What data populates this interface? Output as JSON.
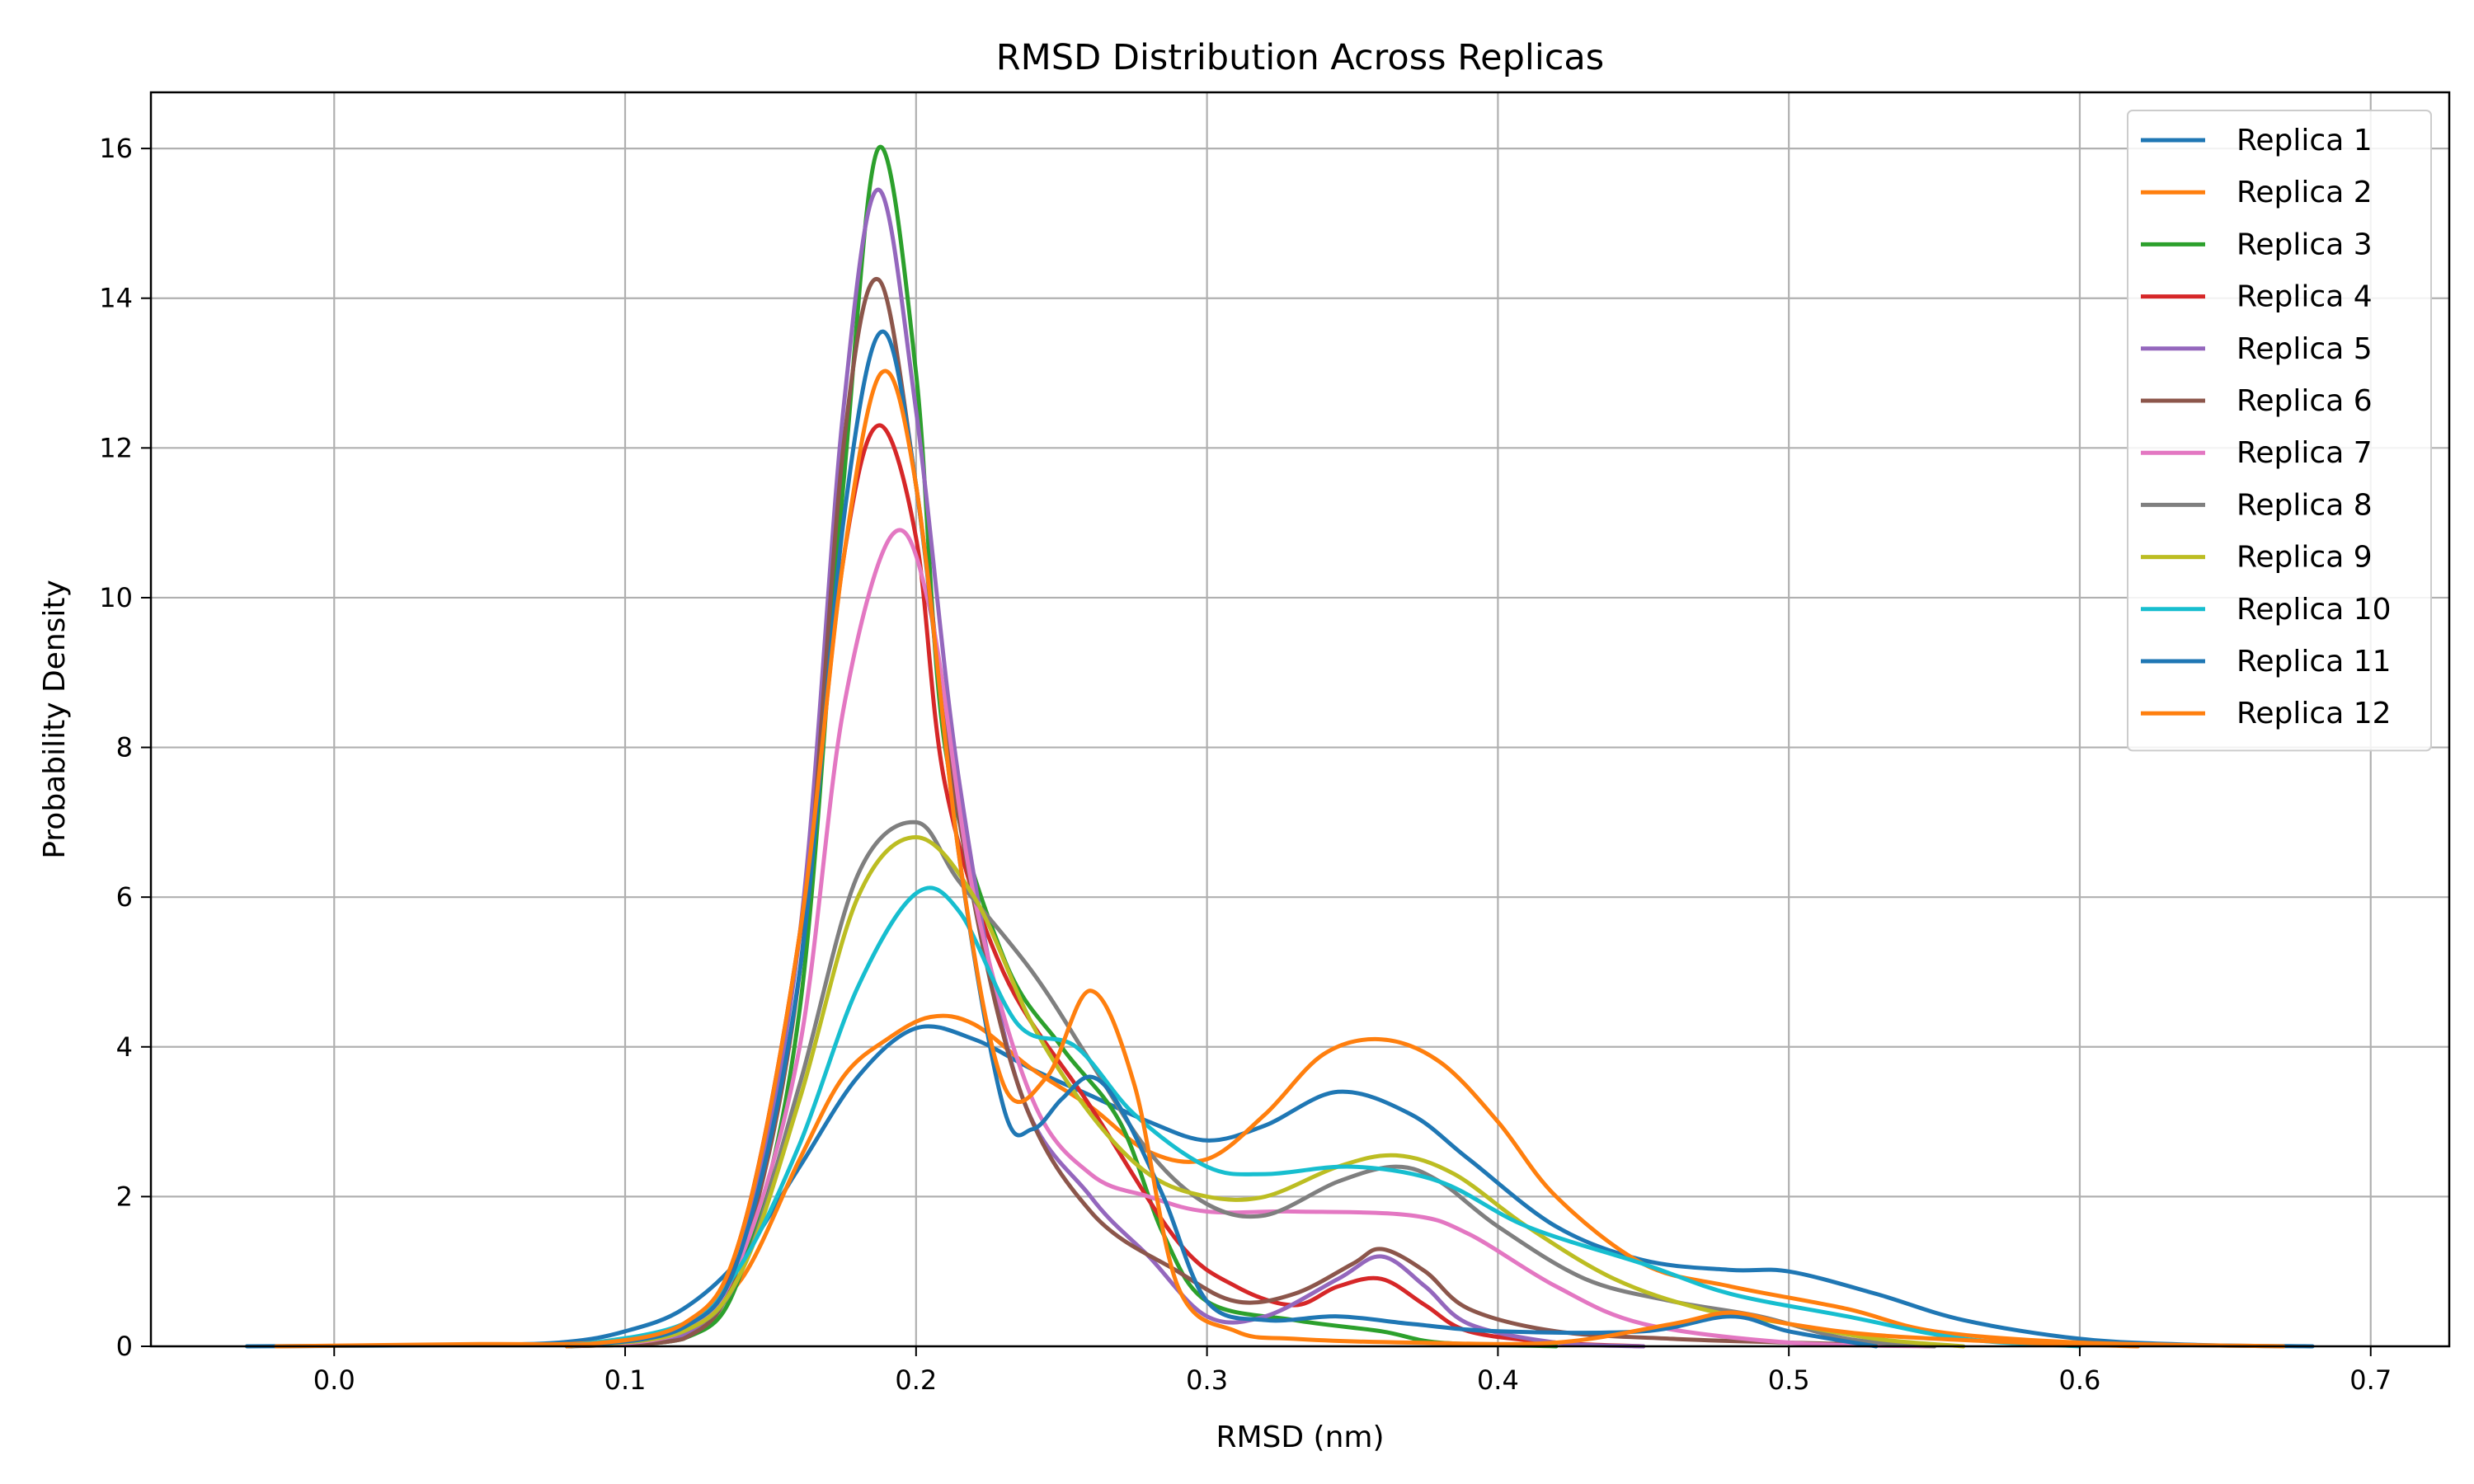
{
  "chart_data": {
    "type": "line",
    "title": "RMSD Distribution Across Replicas",
    "xlabel": "RMSD (nm)",
    "ylabel": "Probability Density",
    "xlim": [
      -0.063,
      0.727
    ],
    "ylim": [
      0,
      16.75
    ],
    "x_ticks": [
      0.0,
      0.1,
      0.2,
      0.3,
      0.4,
      0.5,
      0.6,
      0.7
    ],
    "x_tick_labels": [
      "0.0",
      "0.1",
      "0.2",
      "0.3",
      "0.4",
      "0.5",
      "0.6",
      "0.7"
    ],
    "y_ticks": [
      0,
      2,
      4,
      6,
      8,
      10,
      12,
      14,
      16
    ],
    "y_tick_labels": [
      "0",
      "2",
      "4",
      "6",
      "8",
      "10",
      "12",
      "14",
      "16"
    ],
    "grid": true,
    "legend_position": "top-right",
    "series": [
      {
        "name": "Replica 1",
        "color": "#1f77b4",
        "points": [
          [
            -0.03,
            0
          ],
          [
            0.05,
            0.02
          ],
          [
            0.08,
            0.06
          ],
          [
            0.1,
            0.2
          ],
          [
            0.12,
            0.5
          ],
          [
            0.14,
            1.2
          ],
          [
            0.16,
            2.4
          ],
          [
            0.18,
            3.6
          ],
          [
            0.2,
            4.25
          ],
          [
            0.22,
            4.1
          ],
          [
            0.24,
            3.7
          ],
          [
            0.26,
            3.35
          ],
          [
            0.28,
            3.0
          ],
          [
            0.3,
            2.75
          ],
          [
            0.32,
            2.95
          ],
          [
            0.345,
            3.4
          ],
          [
            0.37,
            3.1
          ],
          [
            0.39,
            2.5
          ],
          [
            0.42,
            1.6
          ],
          [
            0.45,
            1.15
          ],
          [
            0.48,
            1.02
          ],
          [
            0.5,
            1.0
          ],
          [
            0.53,
            0.7
          ],
          [
            0.56,
            0.35
          ],
          [
            0.6,
            0.1
          ],
          [
            0.64,
            0.02
          ],
          [
            0.68,
            0
          ]
        ]
      },
      {
        "name": "Replica 2",
        "color": "#ff7f0e",
        "points": [
          [
            -0.02,
            0
          ],
          [
            0.05,
            0.03
          ],
          [
            0.08,
            0.03
          ],
          [
            0.1,
            0.1
          ],
          [
            0.12,
            0.3
          ],
          [
            0.14,
            0.9
          ],
          [
            0.16,
            2.5
          ],
          [
            0.175,
            3.6
          ],
          [
            0.19,
            4.1
          ],
          [
            0.205,
            4.4
          ],
          [
            0.22,
            4.3
          ],
          [
            0.24,
            3.7
          ],
          [
            0.26,
            3.2
          ],
          [
            0.28,
            2.6
          ],
          [
            0.3,
            2.5
          ],
          [
            0.32,
            3.1
          ],
          [
            0.34,
            3.9
          ],
          [
            0.36,
            4.1
          ],
          [
            0.38,
            3.8
          ],
          [
            0.4,
            3.0
          ],
          [
            0.42,
            2.0
          ],
          [
            0.45,
            1.1
          ],
          [
            0.48,
            0.8
          ],
          [
            0.52,
            0.5
          ],
          [
            0.55,
            0.2
          ],
          [
            0.6,
            0.05
          ],
          [
            0.67,
            0
          ]
        ]
      },
      {
        "name": "Replica 3",
        "color": "#2ca02c",
        "points": [
          [
            0.08,
            0
          ],
          [
            0.12,
            0.1
          ],
          [
            0.14,
            1.0
          ],
          [
            0.16,
            4.5
          ],
          [
            0.175,
            11.5
          ],
          [
            0.187,
            16.0
          ],
          [
            0.2,
            13.0
          ],
          [
            0.21,
            8.0
          ],
          [
            0.23,
            5.2
          ],
          [
            0.25,
            4.0
          ],
          [
            0.27,
            3.0
          ],
          [
            0.285,
            1.5
          ],
          [
            0.3,
            0.6
          ],
          [
            0.33,
            0.35
          ],
          [
            0.36,
            0.2
          ],
          [
            0.38,
            0.05
          ],
          [
            0.42,
            0
          ]
        ]
      },
      {
        "name": "Replica 4",
        "color": "#d62728",
        "points": [
          [
            0.08,
            0
          ],
          [
            0.12,
            0.2
          ],
          [
            0.14,
            1.5
          ],
          [
            0.16,
            5.5
          ],
          [
            0.175,
            10.5
          ],
          [
            0.187,
            12.3
          ],
          [
            0.2,
            10.8
          ],
          [
            0.21,
            7.5
          ],
          [
            0.23,
            5.0
          ],
          [
            0.26,
            3.2
          ],
          [
            0.29,
            1.4
          ],
          [
            0.31,
            0.8
          ],
          [
            0.33,
            0.55
          ],
          [
            0.345,
            0.8
          ],
          [
            0.36,
            0.9
          ],
          [
            0.375,
            0.55
          ],
          [
            0.39,
            0.2
          ],
          [
            0.42,
            0.05
          ],
          [
            0.45,
            0
          ]
        ]
      },
      {
        "name": "Replica 5",
        "color": "#9467bd",
        "points": [
          [
            0.08,
            0
          ],
          [
            0.12,
            0.15
          ],
          [
            0.14,
            1.3
          ],
          [
            0.16,
            5.5
          ],
          [
            0.175,
            12.5
          ],
          [
            0.187,
            15.45
          ],
          [
            0.2,
            12.5
          ],
          [
            0.215,
            7.5
          ],
          [
            0.235,
            3.5
          ],
          [
            0.26,
            2.0
          ],
          [
            0.28,
            1.2
          ],
          [
            0.3,
            0.4
          ],
          [
            0.32,
            0.4
          ],
          [
            0.345,
            0.9
          ],
          [
            0.36,
            1.2
          ],
          [
            0.375,
            0.8
          ],
          [
            0.39,
            0.3
          ],
          [
            0.42,
            0.05
          ],
          [
            0.45,
            0
          ]
        ]
      },
      {
        "name": "Replica 6",
        "color": "#8c564b",
        "points": [
          [
            0.08,
            0
          ],
          [
            0.12,
            0.1
          ],
          [
            0.14,
            1.2
          ],
          [
            0.16,
            5.0
          ],
          [
            0.175,
            12.0
          ],
          [
            0.187,
            14.25
          ],
          [
            0.2,
            11.5
          ],
          [
            0.215,
            7.0
          ],
          [
            0.235,
            3.5
          ],
          [
            0.26,
            1.8
          ],
          [
            0.29,
            1.0
          ],
          [
            0.31,
            0.6
          ],
          [
            0.33,
            0.7
          ],
          [
            0.35,
            1.1
          ],
          [
            0.36,
            1.3
          ],
          [
            0.375,
            1.0
          ],
          [
            0.39,
            0.5
          ],
          [
            0.42,
            0.2
          ],
          [
            0.46,
            0.1
          ],
          [
            0.5,
            0.05
          ],
          [
            0.55,
            0
          ]
        ]
      },
      {
        "name": "Replica 7",
        "color": "#e377c2",
        "points": [
          [
            0.08,
            0
          ],
          [
            0.12,
            0.2
          ],
          [
            0.14,
            1.2
          ],
          [
            0.16,
            4.0
          ],
          [
            0.175,
            8.5
          ],
          [
            0.192,
            10.85
          ],
          [
            0.205,
            9.8
          ],
          [
            0.22,
            6.0
          ],
          [
            0.24,
            3.3
          ],
          [
            0.26,
            2.3
          ],
          [
            0.28,
            2.0
          ],
          [
            0.3,
            1.8
          ],
          [
            0.33,
            1.8
          ],
          [
            0.37,
            1.75
          ],
          [
            0.39,
            1.5
          ],
          [
            0.42,
            0.8
          ],
          [
            0.45,
            0.3
          ],
          [
            0.5,
            0.05
          ],
          [
            0.55,
            0
          ]
        ]
      },
      {
        "name": "Replica 8",
        "color": "#7f7f7f",
        "points": [
          [
            0.08,
            0
          ],
          [
            0.12,
            0.2
          ],
          [
            0.14,
            1.0
          ],
          [
            0.16,
            3.5
          ],
          [
            0.18,
            6.3
          ],
          [
            0.2,
            7.0
          ],
          [
            0.215,
            6.2
          ],
          [
            0.24,
            5.0
          ],
          [
            0.26,
            3.8
          ],
          [
            0.28,
            2.6
          ],
          [
            0.3,
            1.9
          ],
          [
            0.32,
            1.75
          ],
          [
            0.345,
            2.2
          ],
          [
            0.365,
            2.4
          ],
          [
            0.38,
            2.2
          ],
          [
            0.4,
            1.6
          ],
          [
            0.43,
            0.9
          ],
          [
            0.46,
            0.6
          ],
          [
            0.49,
            0.4
          ],
          [
            0.52,
            0.1
          ],
          [
            0.55,
            0
          ]
        ]
      },
      {
        "name": "Replica 9",
        "color": "#bcbd22",
        "points": [
          [
            0.08,
            0
          ],
          [
            0.12,
            0.2
          ],
          [
            0.14,
            1.0
          ],
          [
            0.16,
            3.3
          ],
          [
            0.18,
            6.0
          ],
          [
            0.2,
            6.8
          ],
          [
            0.22,
            6.0
          ],
          [
            0.24,
            4.3
          ],
          [
            0.26,
            3.1
          ],
          [
            0.28,
            2.3
          ],
          [
            0.3,
            2.0
          ],
          [
            0.32,
            2.0
          ],
          [
            0.345,
            2.4
          ],
          [
            0.365,
            2.55
          ],
          [
            0.385,
            2.3
          ],
          [
            0.41,
            1.6
          ],
          [
            0.44,
            0.9
          ],
          [
            0.47,
            0.5
          ],
          [
            0.5,
            0.3
          ],
          [
            0.53,
            0.1
          ],
          [
            0.56,
            0
          ]
        ]
      },
      {
        "name": "Replica 10",
        "color": "#17becf",
        "points": [
          [
            0.08,
            0
          ],
          [
            0.12,
            0.3
          ],
          [
            0.14,
            1.1
          ],
          [
            0.16,
            2.7
          ],
          [
            0.18,
            4.8
          ],
          [
            0.2,
            6.05
          ],
          [
            0.215,
            5.8
          ],
          [
            0.235,
            4.3
          ],
          [
            0.255,
            4.0
          ],
          [
            0.275,
            3.1
          ],
          [
            0.3,
            2.4
          ],
          [
            0.32,
            2.3
          ],
          [
            0.35,
            2.4
          ],
          [
            0.38,
            2.2
          ],
          [
            0.41,
            1.6
          ],
          [
            0.45,
            1.1
          ],
          [
            0.48,
            0.7
          ],
          [
            0.52,
            0.4
          ],
          [
            0.56,
            0.1
          ],
          [
            0.6,
            0
          ]
        ]
      },
      {
        "name": "Replica 11",
        "color": "#1f77b4",
        "points": [
          [
            0.08,
            0
          ],
          [
            0.12,
            0.25
          ],
          [
            0.14,
            1.3
          ],
          [
            0.16,
            5.0
          ],
          [
            0.175,
            11.0
          ],
          [
            0.188,
            13.55
          ],
          [
            0.2,
            11.5
          ],
          [
            0.215,
            6.5
          ],
          [
            0.23,
            3.2
          ],
          [
            0.24,
            2.9
          ],
          [
            0.25,
            3.3
          ],
          [
            0.26,
            3.6
          ],
          [
            0.27,
            3.2
          ],
          [
            0.285,
            2.0
          ],
          [
            0.3,
            0.6
          ],
          [
            0.32,
            0.35
          ],
          [
            0.345,
            0.4
          ],
          [
            0.37,
            0.3
          ],
          [
            0.4,
            0.2
          ],
          [
            0.45,
            0.2
          ],
          [
            0.48,
            0.4
          ],
          [
            0.5,
            0.2
          ],
          [
            0.53,
            0
          ]
        ]
      },
      {
        "name": "Replica 12",
        "color": "#ff7f0e",
        "points": [
          [
            0.08,
            0
          ],
          [
            0.12,
            0.3
          ],
          [
            0.14,
            1.5
          ],
          [
            0.16,
            5.5
          ],
          [
            0.175,
            10.5
          ],
          [
            0.188,
            13.0
          ],
          [
            0.2,
            11.5
          ],
          [
            0.215,
            6.5
          ],
          [
            0.23,
            3.5
          ],
          [
            0.245,
            3.6
          ],
          [
            0.26,
            4.75
          ],
          [
            0.275,
            3.5
          ],
          [
            0.29,
            0.8
          ],
          [
            0.31,
            0.2
          ],
          [
            0.33,
            0.1
          ],
          [
            0.37,
            0.05
          ],
          [
            0.42,
            0.05
          ],
          [
            0.46,
            0.3
          ],
          [
            0.48,
            0.45
          ],
          [
            0.5,
            0.3
          ],
          [
            0.53,
            0.15
          ],
          [
            0.58,
            0.05
          ],
          [
            0.62,
            0
          ]
        ]
      }
    ]
  }
}
